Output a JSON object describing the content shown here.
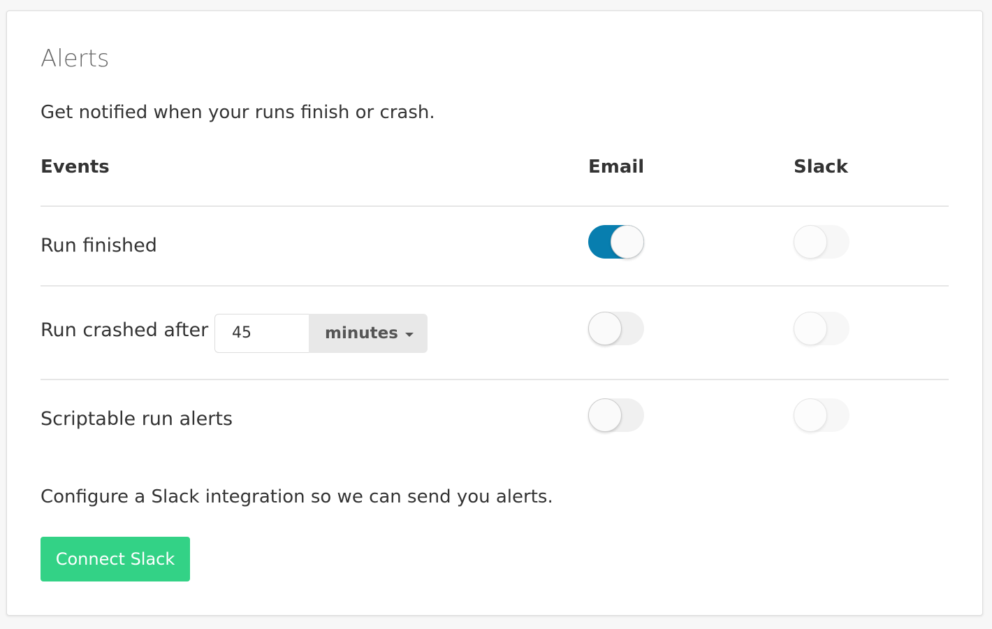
{
  "title": "Alerts",
  "subtitle": "Get notified when your runs finish or crash.",
  "headers": {
    "events": "Events",
    "email": "Email",
    "slack": "Slack"
  },
  "rows": [
    {
      "label": "Run finished",
      "email": true,
      "slack": false
    },
    {
      "label": "Run crashed after",
      "value": "45",
      "unit": "minutes",
      "email": false,
      "slack": false
    },
    {
      "label": "Scriptable run alerts",
      "email": false,
      "slack": false
    }
  ],
  "slack_note": "Configure a Slack integration so we can send you alerts.",
  "connect_button": "Connect Slack",
  "colors": {
    "toggle_on": "#087eaf",
    "button": "#33d286"
  }
}
